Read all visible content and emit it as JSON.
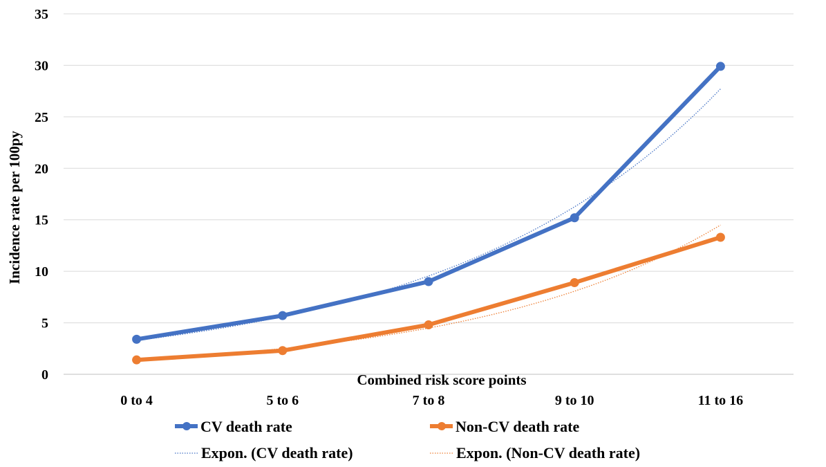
{
  "chart_data": {
    "type": "line",
    "title": "",
    "xlabel": "Combined risk score points",
    "ylabel": "Incidence rate per 100py",
    "categories": [
      "0 to 4",
      "5 to 6",
      "7 to 8",
      "9 to 10",
      "11 to 16"
    ],
    "ylim": [
      0,
      35
    ],
    "yticks": [
      "0",
      "5",
      "10",
      "15",
      "20",
      "25",
      "30",
      "35"
    ],
    "grid": true,
    "legend_position": "bottom",
    "series": [
      {
        "name": "CV death rate",
        "values": [
          3.4,
          5.7,
          9.0,
          15.2,
          29.9
        ],
        "color": "#4472C4"
      },
      {
        "name": "Non-CV death rate",
        "values": [
          1.4,
          2.3,
          4.8,
          8.9,
          13.3
        ],
        "color": "#ED7D31"
      }
    ],
    "trendlines": [
      {
        "name": "Expon. (CV death rate)",
        "type": "exponential",
        "of_series": "CV death rate",
        "color": "#4472C4"
      },
      {
        "name": "Expon. (Non-CV death rate)",
        "type": "exponential",
        "of_series": "Non-CV death rate",
        "color": "#ED7D31"
      }
    ]
  }
}
